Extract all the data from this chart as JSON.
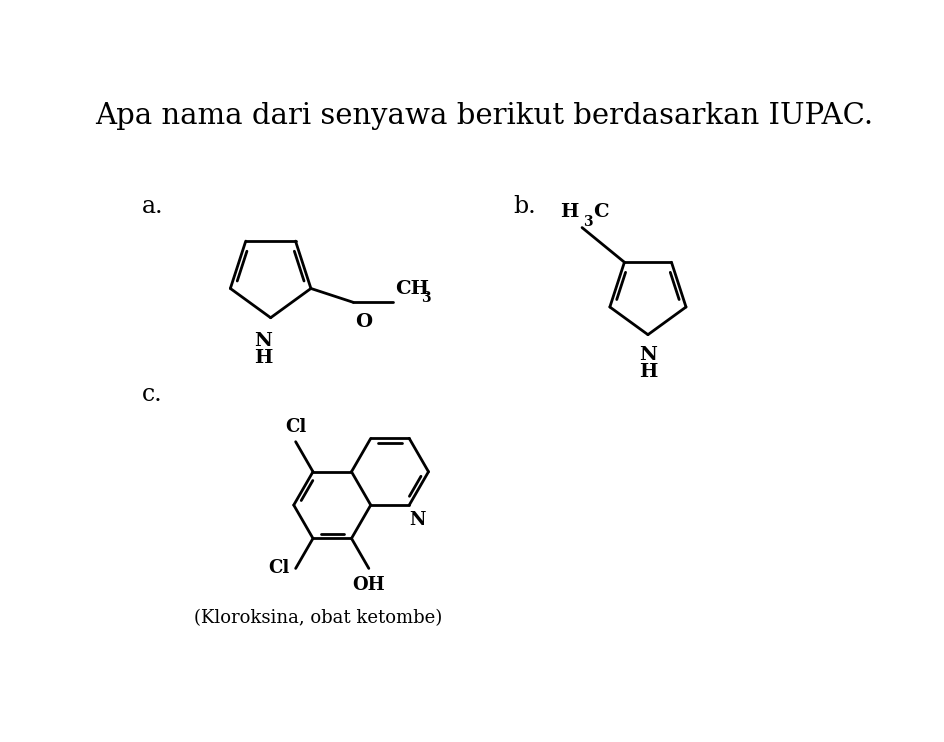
{
  "title": "Apa nama dari senyawa berikut berdasarkan IUPAC.",
  "title_fontsize": 21,
  "background_color": "#ffffff",
  "text_color": "#000000",
  "line_color": "#000000",
  "line_width": 2.0,
  "label_a": "a.",
  "label_b": "b.",
  "label_c": "c.",
  "caption_c": "(Kloroksina, obat ketombe)",
  "font_family": "DejaVu Serif"
}
